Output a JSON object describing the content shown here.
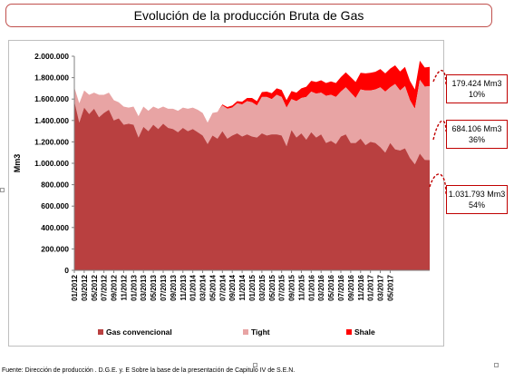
{
  "title": "Evolución de la producción Bruta de Gas",
  "source": "Fuente: Dirección de producción . D.G.E. y. E Sobre la base de la presentación de Capitulo IV de  S.E.N.",
  "callouts": [
    {
      "value": "179.424 Mm3",
      "pct": "10%"
    },
    {
      "value": "684.106 Mm3",
      "pct": "36%"
    },
    {
      "value": "1.031.793 Mm3",
      "pct": "54%"
    }
  ],
  "colors": {
    "convencional": "#b94040",
    "tight": "#e8a4a4",
    "shale": "#ff0000",
    "frame": "#c0504d",
    "callout": "#c00000"
  },
  "chart_data": {
    "type": "area",
    "stacked": true,
    "title": "",
    "xlabel": "",
    "ylabel": "Mm3",
    "ylim": [
      0,
      2000000
    ],
    "yticks": [
      0,
      200000,
      400000,
      600000,
      800000,
      1000000,
      1200000,
      1400000,
      1600000,
      1800000,
      2000000
    ],
    "ytick_labels": [
      "0",
      "200.000",
      "400.000",
      "600.000",
      "800.000",
      "1.000.000",
      "1.200.000",
      "1.400.000",
      "1.600.000",
      "1.800.000",
      "2.000.000"
    ],
    "xtick_labels": [
      "01/2012",
      "03/2012",
      "05/2012",
      "07/2012",
      "09/2012",
      "11/2012",
      "01/2013",
      "03/2013",
      "05/2013",
      "07/2013",
      "09/2013",
      "11/2013",
      "01/2014",
      "03/2014",
      "05/2014",
      "07/2014",
      "09/2014",
      "11/2014",
      "01/2015",
      "03/2015",
      "05/2015",
      "07/2015",
      "09/2015",
      "11/2015",
      "01/2016",
      "03/2016",
      "05/2016",
      "07/2016",
      "09/2016",
      "11/2016",
      "01/2017",
      "03/2017",
      "05/2017"
    ],
    "legend_position": "bottom",
    "grid": false,
    "series": [
      {
        "name": "Gas convencional",
        "values": [
          1580000,
          1380000,
          1520000,
          1460000,
          1510000,
          1430000,
          1470000,
          1500000,
          1400000,
          1420000,
          1360000,
          1370000,
          1360000,
          1240000,
          1340000,
          1300000,
          1360000,
          1320000,
          1370000,
          1330000,
          1320000,
          1290000,
          1330000,
          1300000,
          1320000,
          1290000,
          1260000,
          1180000,
          1260000,
          1230000,
          1300000,
          1230000,
          1260000,
          1280000,
          1250000,
          1270000,
          1250000,
          1240000,
          1280000,
          1260000,
          1270000,
          1270000,
          1260000,
          1160000,
          1310000,
          1240000,
          1280000,
          1220000,
          1290000,
          1240000,
          1270000,
          1190000,
          1210000,
          1180000,
          1250000,
          1270000,
          1190000,
          1190000,
          1230000,
          1170000,
          1200000,
          1190000,
          1150000,
          1100000,
          1190000,
          1130000,
          1120000,
          1140000,
          1050000,
          990000,
          1090000,
          1031793,
          1030000
        ]
      },
      {
        "name": "Tight",
        "values": [
          130000,
          180000,
          160000,
          180000,
          150000,
          210000,
          170000,
          160000,
          190000,
          150000,
          170000,
          150000,
          170000,
          200000,
          190000,
          190000,
          170000,
          190000,
          160000,
          180000,
          190000,
          200000,
          190000,
          210000,
          200000,
          210000,
          210000,
          200000,
          210000,
          250000,
          240000,
          280000,
          260000,
          280000,
          300000,
          310000,
          320000,
          300000,
          340000,
          360000,
          330000,
          370000,
          360000,
          360000,
          290000,
          340000,
          330000,
          400000,
          380000,
          410000,
          390000,
          440000,
          430000,
          440000,
          420000,
          440000,
          470000,
          420000,
          460000,
          510000,
          480000,
          500000,
          560000,
          570000,
          520000,
          610000,
          560000,
          580000,
          540000,
          520000,
          690000,
          684106,
          690000
        ]
      },
      {
        "name": "Shale",
        "values": [
          0,
          0,
          0,
          0,
          0,
          0,
          0,
          0,
          0,
          0,
          0,
          0,
          0,
          0,
          0,
          0,
          0,
          0,
          0,
          0,
          0,
          0,
          0,
          0,
          0,
          0,
          0,
          0,
          0,
          0,
          10000,
          15000,
          20000,
          20000,
          25000,
          30000,
          40000,
          40000,
          45000,
          50000,
          55000,
          60000,
          65000,
          70000,
          75000,
          80000,
          90000,
          95000,
          100000,
          110000,
          115000,
          120000,
          125000,
          130000,
          135000,
          140000,
          145000,
          150000,
          155000,
          160000,
          165000,
          165000,
          170000,
          170000,
          175000,
          175000,
          178000,
          180000,
          180000,
          180000,
          179000,
          179424,
          180000
        ]
      }
    ]
  }
}
